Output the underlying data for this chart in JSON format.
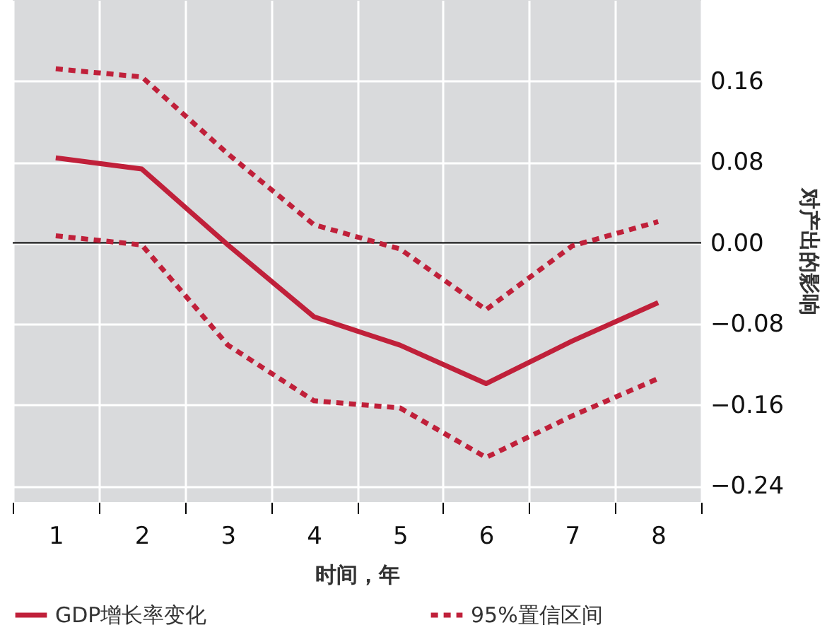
{
  "chart_data": {
    "type": "line",
    "xlabel": "时间，年",
    "ylabel": "对产出的影响",
    "categories": [
      "1",
      "2",
      "3",
      "4",
      "5",
      "6",
      "7",
      "8"
    ],
    "series": [
      {
        "name": "GDP增长率变化",
        "color": "#c0203a",
        "line_style": "solid",
        "values": [
          0.084,
          0.073,
          -0.002,
          -0.073,
          -0.101,
          -0.139,
          -0.097,
          -0.059
        ]
      },
      {
        "name": "95%置信区间",
        "color": "#c0203a",
        "line_style": "dashed",
        "values": [
          0.172,
          0.164,
          0.088,
          0.018,
          -0.006,
          -0.066,
          -0.003,
          0.021
        ]
      },
      {
        "color": "#c0203a",
        "line_style": "dashed",
        "values": [
          0.007,
          -0.002,
          -0.101,
          -0.156,
          -0.163,
          -0.212,
          -0.171,
          -0.134
        ]
      }
    ],
    "ylim": [
      -0.256,
      0.24
    ],
    "yticks": [
      0.16,
      0.08,
      {
        "value": 0,
        "label": "0.00"
      },
      {
        "value": -0.08,
        "label": "−0.08"
      },
      {
        "value": -0.16,
        "label": "−0.16"
      },
      {
        "value": -0.24,
        "label": "−0.24"
      }
    ],
    "ref_lines": [
      {
        "axis": "y",
        "value": 0,
        "color": "#000000"
      }
    ],
    "grid": true,
    "legend": "bottom"
  }
}
